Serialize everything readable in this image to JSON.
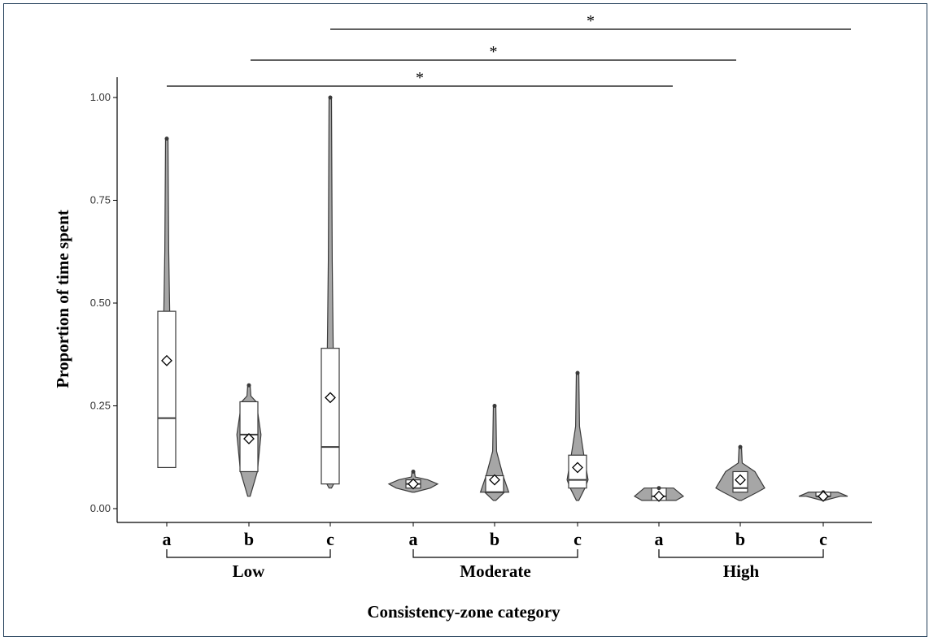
{
  "chart_data": {
    "type": "violin-box",
    "ylabel": "Proportion of time spent",
    "xlabel": "Consistency-zone category",
    "ylim": [
      0,
      1.05
    ],
    "yticks": [
      "0.00",
      "0.25",
      "0.50",
      "0.75",
      "1.00"
    ],
    "ytick_values": [
      0,
      0.25,
      0.5,
      0.75,
      1.0
    ],
    "groups": [
      {
        "label": "Low",
        "categories": [
          "a",
          "b",
          "c"
        ]
      },
      {
        "label": "Moderate",
        "categories": [
          "a",
          "b",
          "c"
        ]
      },
      {
        "label": "High",
        "categories": [
          "a",
          "b",
          "c"
        ]
      }
    ],
    "boxes": [
      {
        "group": "Low",
        "category": "a",
        "min": 0.1,
        "q1": 0.1,
        "median": 0.22,
        "q3": 0.48,
        "max": 0.9,
        "mean": 0.36
      },
      {
        "group": "Low",
        "category": "b",
        "min": 0.03,
        "q1": 0.09,
        "median": 0.18,
        "q3": 0.26,
        "max": 0.3,
        "mean": 0.17
      },
      {
        "group": "Low",
        "category": "c",
        "min": 0.05,
        "q1": 0.06,
        "median": 0.15,
        "q3": 0.39,
        "max": 1.0,
        "mean": 0.27
      },
      {
        "group": "Moderate",
        "category": "a",
        "min": 0.04,
        "q1": 0.05,
        "median": 0.06,
        "q3": 0.07,
        "max": 0.09,
        "mean": 0.06
      },
      {
        "group": "Moderate",
        "category": "b",
        "min": 0.02,
        "q1": 0.04,
        "median": 0.04,
        "q3": 0.08,
        "max": 0.25,
        "mean": 0.07
      },
      {
        "group": "Moderate",
        "category": "c",
        "min": 0.02,
        "q1": 0.05,
        "median": 0.07,
        "q3": 0.13,
        "max": 0.33,
        "mean": 0.1
      },
      {
        "group": "High",
        "category": "a",
        "min": 0.02,
        "q1": 0.02,
        "median": 0.03,
        "q3": 0.05,
        "max": 0.05,
        "mean": 0.03
      },
      {
        "group": "High",
        "category": "b",
        "min": 0.02,
        "q1": 0.04,
        "median": 0.05,
        "q3": 0.09,
        "max": 0.15,
        "mean": 0.07
      },
      {
        "group": "High",
        "category": "c",
        "min": 0.02,
        "q1": 0.03,
        "median": 0.03,
        "q3": 0.04,
        "max": 0.04,
        "mean": 0.03
      }
    ],
    "significance": [
      {
        "from": "Low a",
        "to": "High a",
        "label": "*"
      },
      {
        "from": "Low b",
        "to": "High b",
        "label": "*"
      },
      {
        "from": "Low c",
        "to": "High c",
        "label": "*"
      }
    ],
    "colors": {
      "violin_fill": "#a6a6a6",
      "box_fill": "#ffffff",
      "line": "#3a3a3a"
    }
  }
}
